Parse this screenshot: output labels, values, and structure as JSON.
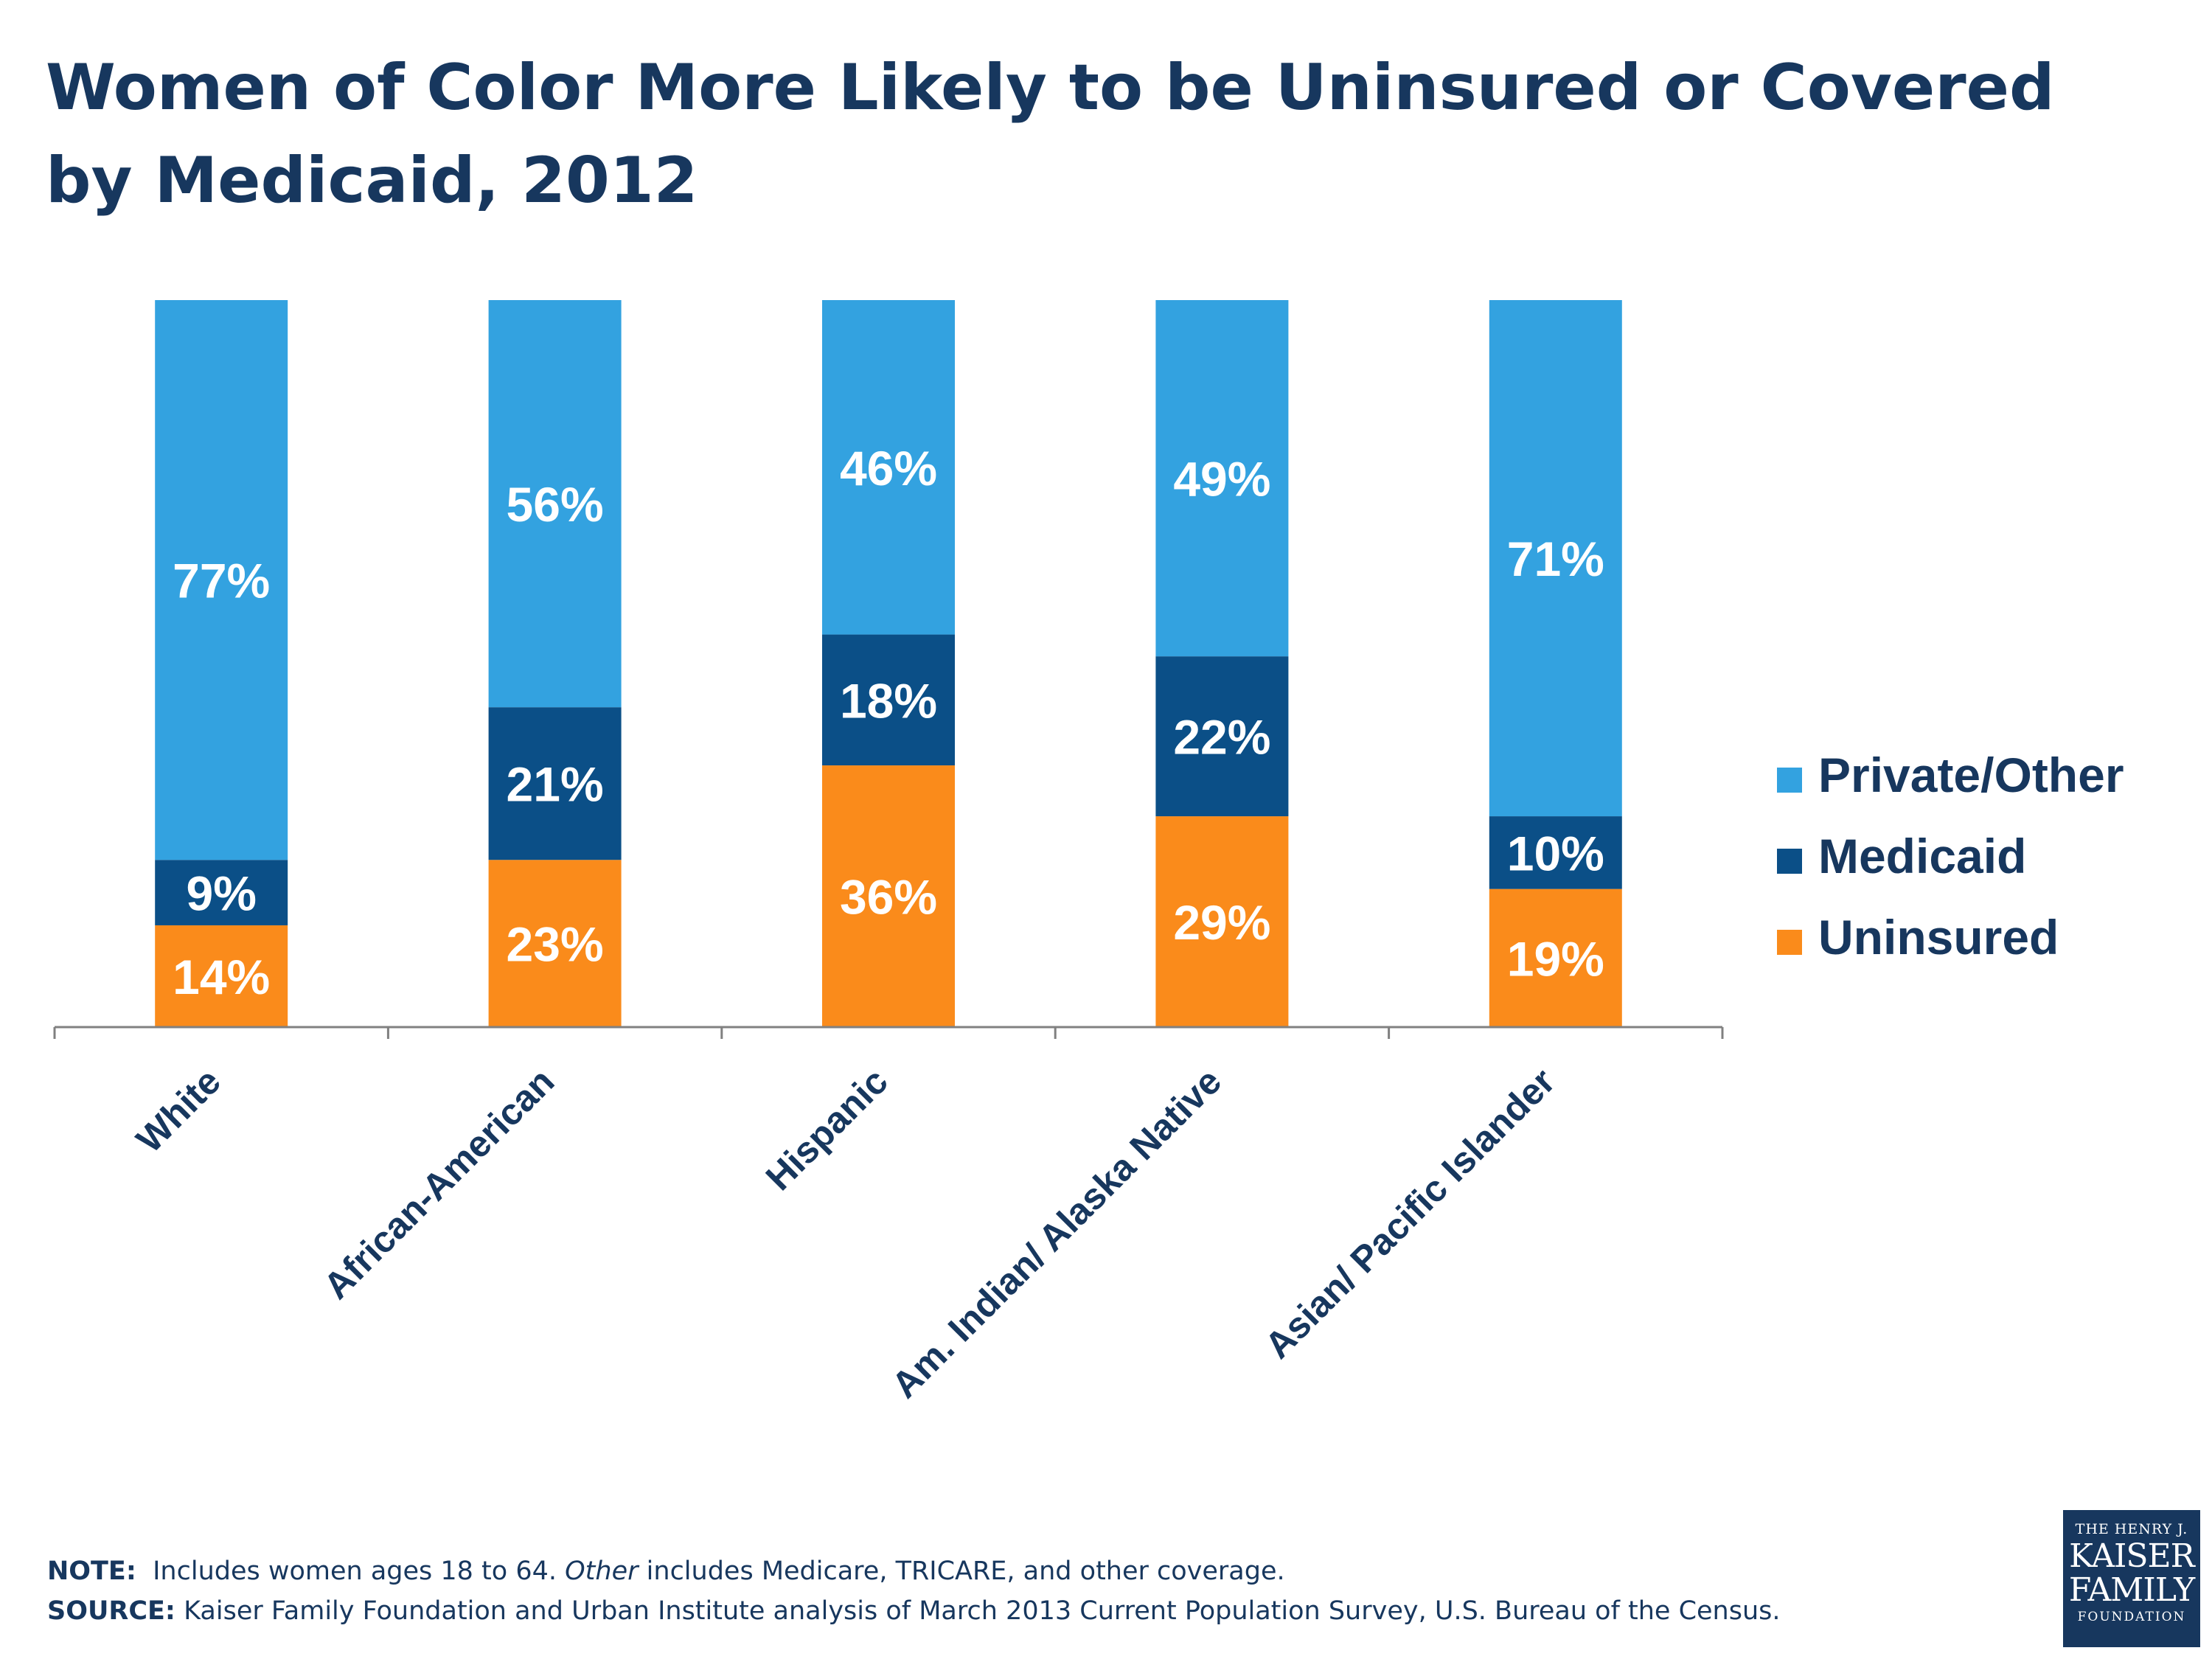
{
  "title": "Women of Color More Likely to be Uninsured or Covered by Medicaid, 2012",
  "chart_data": {
    "type": "bar",
    "stacked": true,
    "categories": [
      "White",
      "African-American",
      "Hispanic",
      "Am. Indian/ Alaska Native",
      "Asian/ Pacific Islander"
    ],
    "series": [
      {
        "name": "Uninsured",
        "color": "#fa8b1b",
        "values": [
          14,
          23,
          36,
          29,
          19
        ],
        "labels": [
          "14%",
          "23%",
          "36%",
          "29%",
          "19%"
        ]
      },
      {
        "name": "Medicaid",
        "color": "#0b4f87",
        "values": [
          9,
          21,
          18,
          22,
          10
        ],
        "labels": [
          "9%",
          "21%",
          "18%",
          "22%",
          "10%"
        ]
      },
      {
        "name": "Private/Other",
        "color": "#33a2e0",
        "values": [
          77,
          56,
          46,
          49,
          71
        ],
        "labels": [
          "77%",
          "56%",
          "46%",
          "49%",
          "71%"
        ]
      }
    ],
    "legend_order": [
      "Private/Other",
      "Medicaid",
      "Uninsured"
    ],
    "legend_position": "right",
    "ylim": [
      0,
      100
    ],
    "grid": false,
    "xlabel": "",
    "ylabel": ""
  },
  "note": {
    "note_label": "NOTE:",
    "note_pre": "Includes women ages 18 to 64.",
    "note_italic": "Other",
    "note_post": "includes Medicare, TRICARE, and other coverage.",
    "source_label": "SOURCE:",
    "source_text": "Kaiser Family Foundation and Urban Institute analysis of March 2013 Current Population Survey, U.S. Bureau of the Census."
  },
  "logo": {
    "line1": "THE HENRY J.",
    "line2": "KAISER",
    "line3": "FAMILY",
    "line4": "FOUNDATION"
  }
}
